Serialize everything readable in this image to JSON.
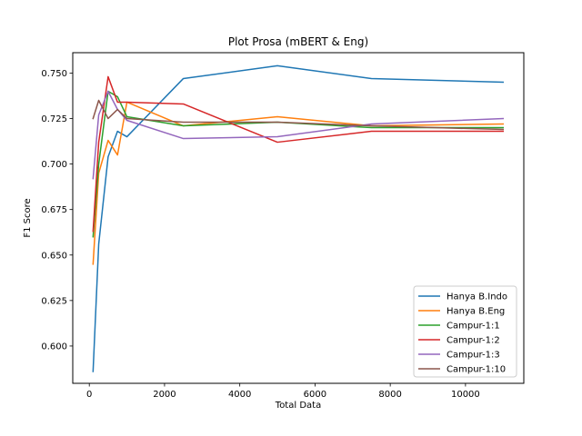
{
  "chart_data": {
    "type": "line",
    "title": "Plot Prosa (mBERT & Eng)",
    "xlabel": "Total Data",
    "ylabel": "F1 Score",
    "xlim": [
      -440,
      11550
    ],
    "ylim": [
      0.5795,
      0.7612
    ],
    "xticks": [
      0,
      2000,
      4000,
      6000,
      8000,
      10000
    ],
    "xtick_labels": [
      "0",
      "2000",
      "4000",
      "6000",
      "8000",
      "10000"
    ],
    "yticks": [
      0.6,
      0.625,
      0.65,
      0.675,
      0.7,
      0.725,
      0.75
    ],
    "ytick_labels": [
      "0.600",
      "0.625",
      "0.650",
      "0.675",
      "0.700",
      "0.725",
      "0.750"
    ],
    "grid": false,
    "legend_position": "lower-right",
    "x": [
      100,
      250,
      500,
      750,
      1000,
      2500,
      5000,
      7500,
      11000
    ],
    "series": [
      {
        "name": "Hanya B.Indo",
        "color": "#1f77b4",
        "values": [
          0.586,
          0.656,
          0.704,
          0.718,
          0.715,
          0.747,
          0.754,
          0.747,
          0.745
        ]
      },
      {
        "name": "Hanya B.Eng",
        "color": "#ff7f0e",
        "values": [
          0.645,
          0.695,
          0.713,
          0.705,
          0.734,
          0.721,
          0.726,
          0.721,
          0.722
        ]
      },
      {
        "name": "Campur-1:1",
        "color": "#2ca02c",
        "values": [
          0.66,
          0.7,
          0.74,
          0.737,
          0.726,
          0.721,
          0.723,
          0.72,
          0.72
        ]
      },
      {
        "name": "Campur-1:2",
        "color": "#d62728",
        "values": [
          0.663,
          0.712,
          0.748,
          0.734,
          0.734,
          0.733,
          0.712,
          0.718,
          0.718
        ]
      },
      {
        "name": "Campur-1:3",
        "color": "#9467bd",
        "values": [
          0.692,
          0.727,
          0.74,
          0.73,
          0.724,
          0.714,
          0.715,
          0.722,
          0.725
        ]
      },
      {
        "name": "Campur-1:10",
        "color": "#8c564b",
        "values": [
          0.725,
          0.735,
          0.725,
          0.73,
          0.725,
          0.723,
          0.723,
          0.721,
          0.719
        ]
      }
    ]
  }
}
